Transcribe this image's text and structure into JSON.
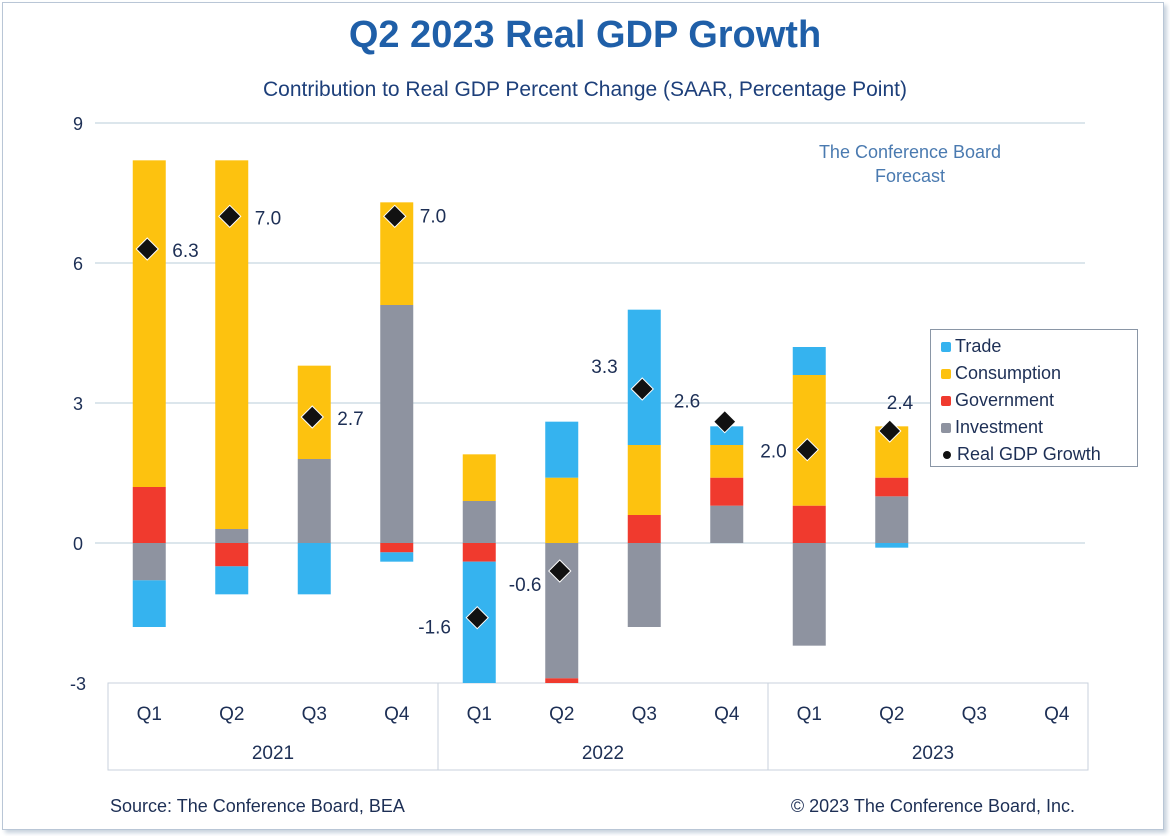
{
  "title": "Q2 2023 Real GDP Growth",
  "subtitle": "Contribution to Real GDP Percent Change (SAAR, Percentage Point)",
  "forecast_note": [
    "The Conference Board",
    "Forecast"
  ],
  "source": "Source: The Conference Board, BEA",
  "copyright": "© 2023 The Conference Board, Inc.",
  "chart_data": {
    "type": "bar",
    "stacked": true,
    "categories": [
      "Q1",
      "Q2",
      "Q3",
      "Q4",
      "Q1",
      "Q2",
      "Q3",
      "Q4",
      "Q1",
      "Q2",
      "Q3",
      "Q4"
    ],
    "groups": [
      {
        "label": "2021",
        "count": 4
      },
      {
        "label": "2022",
        "count": 4
      },
      {
        "label": "2023",
        "count": 4
      }
    ],
    "ylim": [
      -3,
      9
    ],
    "yticks": [
      -3,
      0,
      3,
      6,
      9
    ],
    "grid": true,
    "legend_placement": "right",
    "series": [
      {
        "name": "Investment",
        "color": "#8e93a0",
        "values": [
          -0.8,
          0.3,
          1.8,
          5.1,
          0.9,
          -2.9,
          -1.8,
          0.8,
          -2.2,
          1.0,
          null,
          null
        ]
      },
      {
        "name": "Government",
        "color": "#f03a2e",
        "values": [
          1.2,
          -0.5,
          0.0,
          -0.2,
          -0.4,
          -0.1,
          0.6,
          0.6,
          0.8,
          0.4,
          null,
          null
        ]
      },
      {
        "name": "Consumption",
        "color": "#fdc20f",
        "values": [
          7.0,
          7.9,
          2.0,
          2.2,
          1.0,
          1.4,
          1.5,
          0.7,
          2.8,
          1.1,
          null,
          null
        ]
      },
      {
        "name": "Trade",
        "color": "#35b3ef",
        "values": [
          -1.0,
          -0.6,
          -1.1,
          -0.2,
          -2.6,
          1.2,
          2.9,
          0.4,
          0.6,
          -0.1,
          null,
          null
        ]
      }
    ],
    "line_series": {
      "name": "Real GDP Growth",
      "color": "#111111",
      "values": [
        6.3,
        7.0,
        2.7,
        7.0,
        -1.6,
        -0.6,
        3.3,
        2.6,
        2.0,
        2.4,
        null,
        null
      ],
      "labels": [
        "6.3",
        "7.0",
        "2.7",
        "7.0",
        "-1.6",
        "-0.6",
        "3.3",
        "2.6",
        "2.0",
        "2.4",
        "",
        ""
      ]
    },
    "legend_order": [
      "Trade",
      "Consumption",
      "Government",
      "Investment",
      "Real GDP Growth"
    ]
  }
}
